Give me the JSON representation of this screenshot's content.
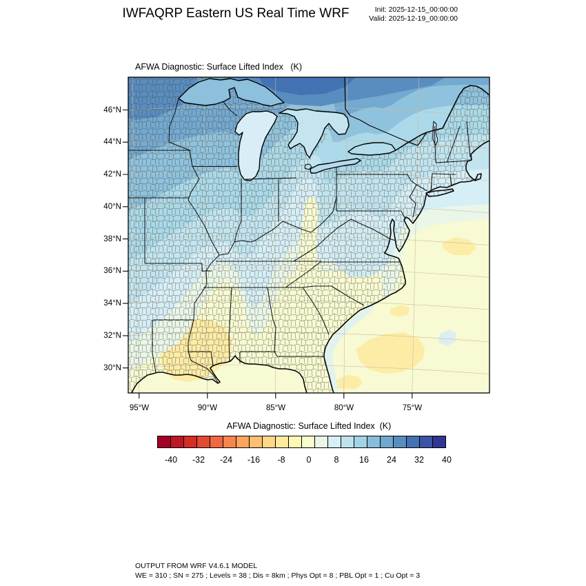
{
  "header": {
    "title": "IWFAQRP Eastern US Real Time WRF",
    "init": "Init: 2025-12-15_00:00:00",
    "valid": "Valid: 2025-12-19_00:00:00"
  },
  "map": {
    "title": "AFWA Diagnostic: Surface Lifted Index   (K)",
    "lat_ticks": [
      "46°N",
      "44°N",
      "42°N",
      "40°N",
      "38°N",
      "36°N",
      "34°N",
      "32°N",
      "30°N"
    ],
    "lon_ticks": [
      "95°W",
      "90°W",
      "85°W",
      "80°W",
      "75°W"
    ]
  },
  "colorbar": {
    "title": "AFWA Diagnostic: Surface Lifted Index  (K)",
    "ticks": [
      "-40",
      "-32",
      "-24",
      "-16",
      "-8",
      "0",
      "8",
      "16",
      "24",
      "32",
      "40"
    ],
    "colors": [
      "#a50026",
      "#bd1726",
      "#d42e26",
      "#e34a33",
      "#f16740",
      "#f7864e",
      "#fca55d",
      "#fdbf71",
      "#fed787",
      "#fee99d",
      "#fff8b4",
      "#f8fccd",
      "#e9f6e8",
      "#d6eef5",
      "#bde2ee",
      "#a3d3e6",
      "#89beda",
      "#70a8ce",
      "#598dc0",
      "#4472b3",
      "#3b54a4",
      "#313695"
    ]
  },
  "footer": {
    "line1": "OUTPUT FROM WRF V4.6.1 MODEL",
    "line2": "WE = 310 ; SN = 275 ; Levels = 38 ; Dis = 8km ; Phys Opt = 8 ; PBL Opt = 1 ; Cu Opt = 3"
  }
}
